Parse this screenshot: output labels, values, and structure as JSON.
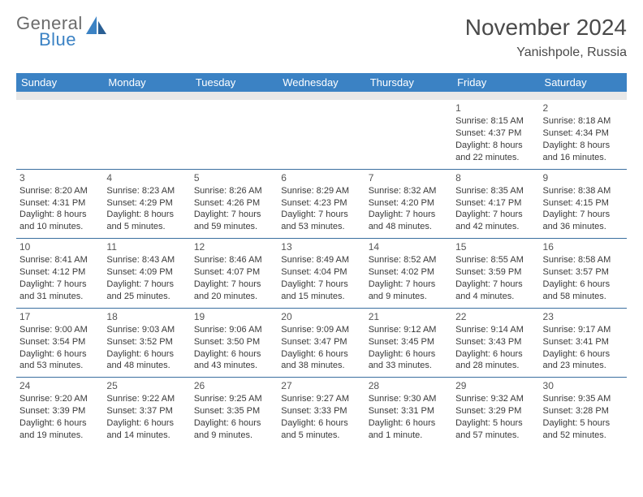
{
  "logo": {
    "line1": "General",
    "line2": "Blue"
  },
  "title": "November 2024",
  "location": "Yanishpole, Russia",
  "colors": {
    "header_bg": "#3b82c4",
    "header_text": "#ffffff",
    "spacer_bg": "#e8e8e8",
    "row_border": "#3b6fa0",
    "text": "#3a3a3a",
    "title_text": "#4a4a4a",
    "logo_gray": "#6b6b6b",
    "logo_blue": "#3b82c4"
  },
  "dow": [
    "Sunday",
    "Monday",
    "Tuesday",
    "Wednesday",
    "Thursday",
    "Friday",
    "Saturday"
  ],
  "weeks": [
    [
      null,
      null,
      null,
      null,
      null,
      {
        "n": "1",
        "sr": "Sunrise: 8:15 AM",
        "ss": "Sunset: 4:37 PM",
        "dl1": "Daylight: 8 hours",
        "dl2": "and 22 minutes."
      },
      {
        "n": "2",
        "sr": "Sunrise: 8:18 AM",
        "ss": "Sunset: 4:34 PM",
        "dl1": "Daylight: 8 hours",
        "dl2": "and 16 minutes."
      }
    ],
    [
      {
        "n": "3",
        "sr": "Sunrise: 8:20 AM",
        "ss": "Sunset: 4:31 PM",
        "dl1": "Daylight: 8 hours",
        "dl2": "and 10 minutes."
      },
      {
        "n": "4",
        "sr": "Sunrise: 8:23 AM",
        "ss": "Sunset: 4:29 PM",
        "dl1": "Daylight: 8 hours",
        "dl2": "and 5 minutes."
      },
      {
        "n": "5",
        "sr": "Sunrise: 8:26 AM",
        "ss": "Sunset: 4:26 PM",
        "dl1": "Daylight: 7 hours",
        "dl2": "and 59 minutes."
      },
      {
        "n": "6",
        "sr": "Sunrise: 8:29 AM",
        "ss": "Sunset: 4:23 PM",
        "dl1": "Daylight: 7 hours",
        "dl2": "and 53 minutes."
      },
      {
        "n": "7",
        "sr": "Sunrise: 8:32 AM",
        "ss": "Sunset: 4:20 PM",
        "dl1": "Daylight: 7 hours",
        "dl2": "and 48 minutes."
      },
      {
        "n": "8",
        "sr": "Sunrise: 8:35 AM",
        "ss": "Sunset: 4:17 PM",
        "dl1": "Daylight: 7 hours",
        "dl2": "and 42 minutes."
      },
      {
        "n": "9",
        "sr": "Sunrise: 8:38 AM",
        "ss": "Sunset: 4:15 PM",
        "dl1": "Daylight: 7 hours",
        "dl2": "and 36 minutes."
      }
    ],
    [
      {
        "n": "10",
        "sr": "Sunrise: 8:41 AM",
        "ss": "Sunset: 4:12 PM",
        "dl1": "Daylight: 7 hours",
        "dl2": "and 31 minutes."
      },
      {
        "n": "11",
        "sr": "Sunrise: 8:43 AM",
        "ss": "Sunset: 4:09 PM",
        "dl1": "Daylight: 7 hours",
        "dl2": "and 25 minutes."
      },
      {
        "n": "12",
        "sr": "Sunrise: 8:46 AM",
        "ss": "Sunset: 4:07 PM",
        "dl1": "Daylight: 7 hours",
        "dl2": "and 20 minutes."
      },
      {
        "n": "13",
        "sr": "Sunrise: 8:49 AM",
        "ss": "Sunset: 4:04 PM",
        "dl1": "Daylight: 7 hours",
        "dl2": "and 15 minutes."
      },
      {
        "n": "14",
        "sr": "Sunrise: 8:52 AM",
        "ss": "Sunset: 4:02 PM",
        "dl1": "Daylight: 7 hours",
        "dl2": "and 9 minutes."
      },
      {
        "n": "15",
        "sr": "Sunrise: 8:55 AM",
        "ss": "Sunset: 3:59 PM",
        "dl1": "Daylight: 7 hours",
        "dl2": "and 4 minutes."
      },
      {
        "n": "16",
        "sr": "Sunrise: 8:58 AM",
        "ss": "Sunset: 3:57 PM",
        "dl1": "Daylight: 6 hours",
        "dl2": "and 58 minutes."
      }
    ],
    [
      {
        "n": "17",
        "sr": "Sunrise: 9:00 AM",
        "ss": "Sunset: 3:54 PM",
        "dl1": "Daylight: 6 hours",
        "dl2": "and 53 minutes."
      },
      {
        "n": "18",
        "sr": "Sunrise: 9:03 AM",
        "ss": "Sunset: 3:52 PM",
        "dl1": "Daylight: 6 hours",
        "dl2": "and 48 minutes."
      },
      {
        "n": "19",
        "sr": "Sunrise: 9:06 AM",
        "ss": "Sunset: 3:50 PM",
        "dl1": "Daylight: 6 hours",
        "dl2": "and 43 minutes."
      },
      {
        "n": "20",
        "sr": "Sunrise: 9:09 AM",
        "ss": "Sunset: 3:47 PM",
        "dl1": "Daylight: 6 hours",
        "dl2": "and 38 minutes."
      },
      {
        "n": "21",
        "sr": "Sunrise: 9:12 AM",
        "ss": "Sunset: 3:45 PM",
        "dl1": "Daylight: 6 hours",
        "dl2": "and 33 minutes."
      },
      {
        "n": "22",
        "sr": "Sunrise: 9:14 AM",
        "ss": "Sunset: 3:43 PM",
        "dl1": "Daylight: 6 hours",
        "dl2": "and 28 minutes."
      },
      {
        "n": "23",
        "sr": "Sunrise: 9:17 AM",
        "ss": "Sunset: 3:41 PM",
        "dl1": "Daylight: 6 hours",
        "dl2": "and 23 minutes."
      }
    ],
    [
      {
        "n": "24",
        "sr": "Sunrise: 9:20 AM",
        "ss": "Sunset: 3:39 PM",
        "dl1": "Daylight: 6 hours",
        "dl2": "and 19 minutes."
      },
      {
        "n": "25",
        "sr": "Sunrise: 9:22 AM",
        "ss": "Sunset: 3:37 PM",
        "dl1": "Daylight: 6 hours",
        "dl2": "and 14 minutes."
      },
      {
        "n": "26",
        "sr": "Sunrise: 9:25 AM",
        "ss": "Sunset: 3:35 PM",
        "dl1": "Daylight: 6 hours",
        "dl2": "and 9 minutes."
      },
      {
        "n": "27",
        "sr": "Sunrise: 9:27 AM",
        "ss": "Sunset: 3:33 PM",
        "dl1": "Daylight: 6 hours",
        "dl2": "and 5 minutes."
      },
      {
        "n": "28",
        "sr": "Sunrise: 9:30 AM",
        "ss": "Sunset: 3:31 PM",
        "dl1": "Daylight: 6 hours",
        "dl2": "and 1 minute."
      },
      {
        "n": "29",
        "sr": "Sunrise: 9:32 AM",
        "ss": "Sunset: 3:29 PM",
        "dl1": "Daylight: 5 hours",
        "dl2": "and 57 minutes."
      },
      {
        "n": "30",
        "sr": "Sunrise: 9:35 AM",
        "ss": "Sunset: 3:28 PM",
        "dl1": "Daylight: 5 hours",
        "dl2": "and 52 minutes."
      }
    ]
  ]
}
